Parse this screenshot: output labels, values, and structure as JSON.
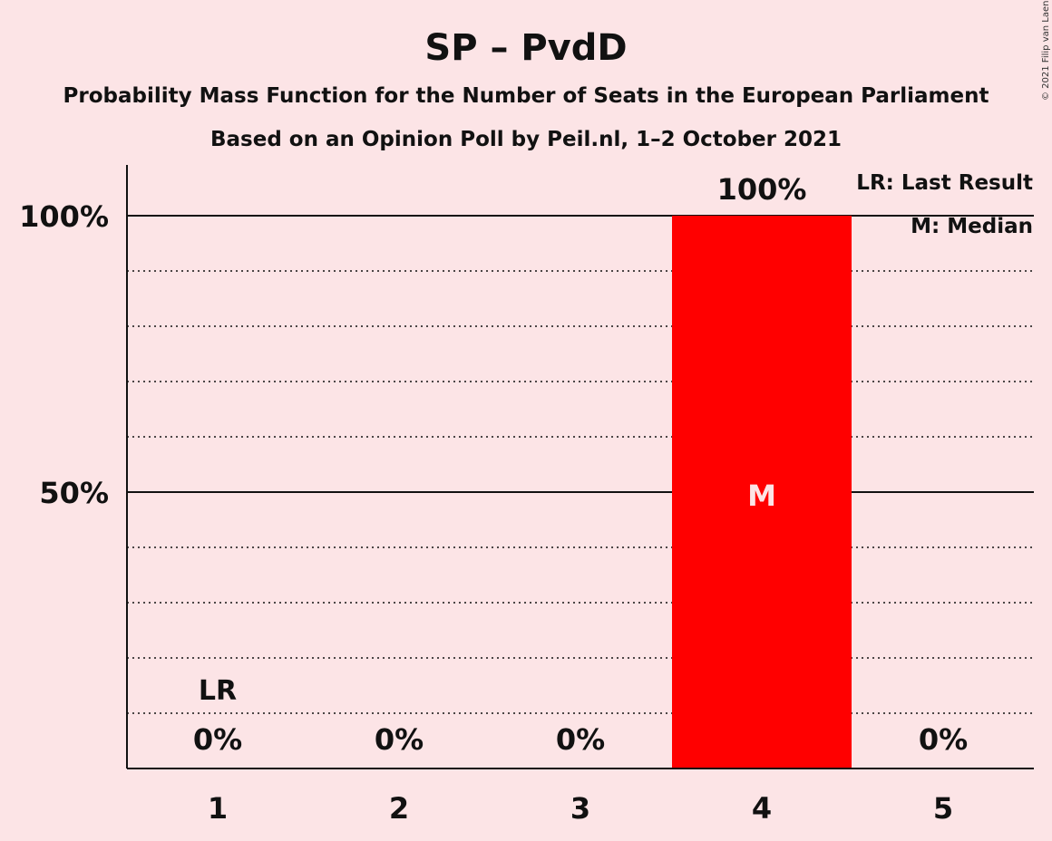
{
  "chart_data": {
    "type": "bar",
    "title": "SP – PvdD",
    "subtitle1": "Probability Mass Function for the Number of Seats in the European Parliament",
    "subtitle2": "Based on an Opinion Poll by Peil.nl, 1–2 October 2021",
    "copyright": "© 2021 Filip van Laenen",
    "categories": [
      "1",
      "2",
      "3",
      "4",
      "5"
    ],
    "values": [
      0,
      0,
      0,
      100,
      0
    ],
    "value_labels": [
      "0%",
      "0%",
      "0%",
      "100%",
      "0%"
    ],
    "ylim": [
      0,
      110
    ],
    "yticks": [
      {
        "value": 50,
        "label": "50%"
      },
      {
        "value": 100,
        "label": "100%"
      }
    ],
    "minor_gridlines": [
      10,
      20,
      30,
      40,
      60,
      70,
      80,
      90
    ],
    "last_result": {
      "category": "1",
      "label": "LR"
    },
    "median": {
      "category": "4",
      "label": "M"
    },
    "legend": [
      "LR: Last Result",
      "M: Median"
    ],
    "legend_position": "top-right",
    "colors": {
      "bar": "#ff0000",
      "background": "#fce4e6",
      "text": "#111111",
      "median_text": "#fce4e6"
    }
  }
}
